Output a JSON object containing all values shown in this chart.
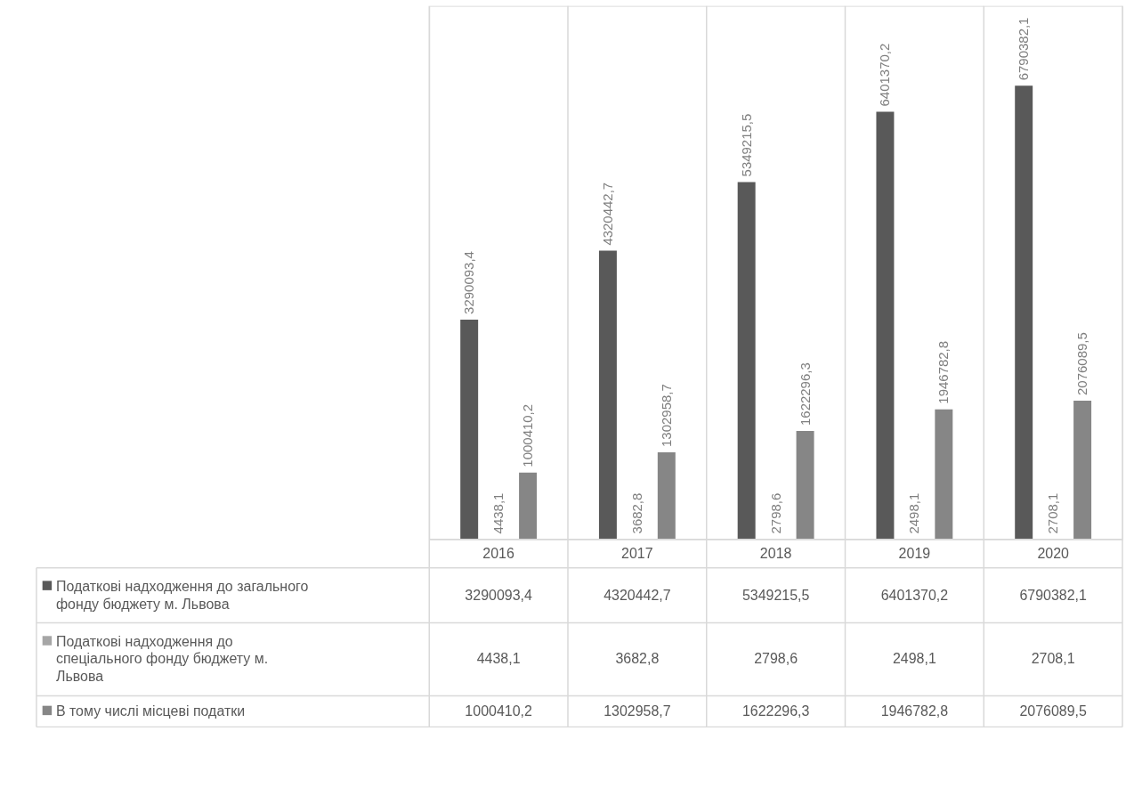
{
  "chart_data": {
    "type": "bar",
    "categories": [
      "2016",
      "2017",
      "2018",
      "2019",
      "2020"
    ],
    "series": [
      {
        "name": "Податкові надходження до загального фонду бюджету  м. Львова",
        "color": "#595959",
        "values": [
          3290093.4,
          4320442.7,
          5349215.5,
          6401370.2,
          6790382.1
        ],
        "value_labels": [
          "3290093,4",
          "4320442,7",
          "5349215,5",
          "6401370,2",
          "6790382,1"
        ]
      },
      {
        "name": "Податкові надходження до спеціального фонду бюджету м. Львова",
        "color": "#a6a6a6",
        "values": [
          4438.1,
          3682.8,
          2798.6,
          2498.1,
          2708.1
        ],
        "value_labels": [
          "4438,1",
          "3682,8",
          "2798,6",
          "2498,1",
          "2708,1"
        ]
      },
      {
        "name": "В тому числі місцеві податки",
        "color": "#868686",
        "values": [
          1000410.2,
          1302958.7,
          1622296.3,
          1946782.8,
          2076089.5
        ],
        "value_labels": [
          "1000410,2",
          "1302958,7",
          "1622296,3",
          "1946782,8",
          "2076089,5"
        ]
      }
    ],
    "legend": "bottom"
  }
}
